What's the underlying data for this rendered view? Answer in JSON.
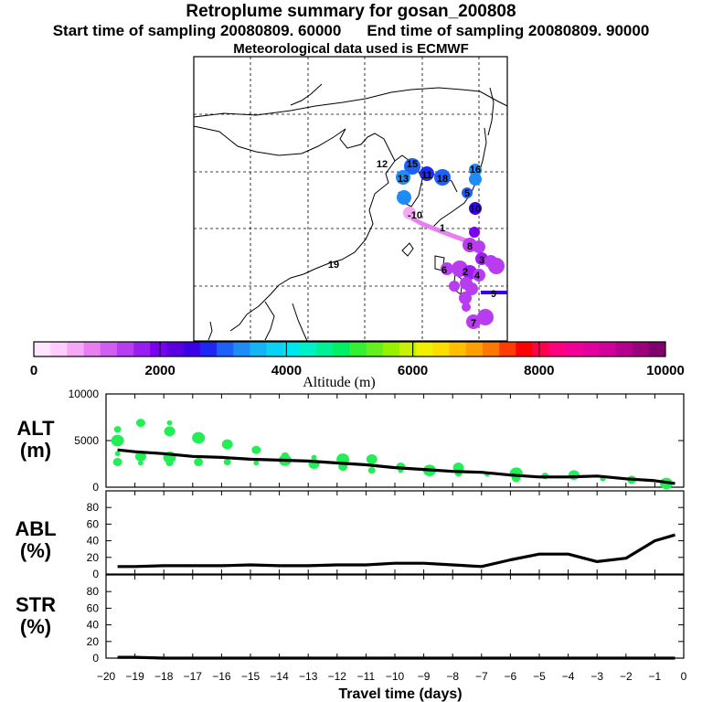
{
  "title": "Retroplume summary for gosan_200808",
  "start_label": "Start time of sampling 20080809. 60000",
  "end_label": "End time of sampling 20080809. 90000",
  "met_label": "Meteorological data used is ECMWF",
  "colorbar": {
    "label": "Altitude (m)",
    "ticks": [
      "0",
      "2000",
      "4000",
      "6000",
      "8000",
      "10000"
    ],
    "colors": [
      "#ffe6ff",
      "#ffccff",
      "#f5a8f5",
      "#e680f0",
      "#d15ef0",
      "#b83cf0",
      "#9a1ef0",
      "#7a00f0",
      "#5a00e0",
      "#3a00e6",
      "#1e28f5",
      "#1e60fa",
      "#1e8cf5",
      "#14b4f5",
      "#0ad2f5",
      "#00e6f0",
      "#00f0c8",
      "#00f096",
      "#00f064",
      "#32f032",
      "#64f01e",
      "#96f000",
      "#c8f000",
      "#f0f000",
      "#ffdc00",
      "#ffbe00",
      "#ffa000",
      "#ff7800",
      "#ff3c00",
      "#ff0000",
      "#ff0050",
      "#ff0080",
      "#f00096",
      "#e1009b",
      "#d2009b",
      "#b4008c",
      "#9b007d",
      "#82006e"
    ]
  },
  "map": {
    "labels": [
      {
        "text": "12",
        "color": "#1e60fa"
      },
      {
        "text": "15",
        "color": "#1e28f5"
      },
      {
        "text": "13",
        "color": "#1e8cf5"
      },
      {
        "text": "18",
        "color": "#1e8cf5"
      },
      {
        "text": "16",
        "color": "#1e60fa"
      },
      {
        "text": "11",
        "color": "#1e28f5"
      },
      {
        "text": "5",
        "color": "#1e60fa"
      },
      {
        "text": "10",
        "color": "#3a00e6"
      },
      {
        "text": "19",
        "color": "#1e60fa"
      },
      {
        "text": "-10",
        "color": "#f5a8f5"
      },
      {
        "text": "1",
        "color": "#d15ef0"
      },
      {
        "text": "8",
        "color": "#b83cf0"
      },
      {
        "text": "3",
        "color": "#b83cf0"
      },
      {
        "text": "4",
        "color": "#9a1ef0"
      },
      {
        "text": "6",
        "color": "#b83cf0"
      },
      {
        "text": "2",
        "color": "#9a1ef0"
      },
      {
        "text": "9",
        "color": "#b83cf0"
      },
      {
        "text": "7",
        "color": "#b83cf0"
      }
    ]
  },
  "chart_data": [
    {
      "type": "scatter",
      "panel": "ALT",
      "ylabel": "ALT\n(m)",
      "xlabel": "Travel time (days)",
      "xlim": [
        -20,
        0
      ],
      "ylim": [
        0,
        10000
      ],
      "yticks": [
        "0",
        "5000",
        "10000"
      ],
      "xticks": [
        "−20",
        "−19",
        "−18",
        "−17",
        "−16",
        "−15",
        "−14",
        "−13",
        "−12",
        "−11",
        "−10",
        "−9",
        "−8",
        "−7",
        "−6",
        "−5",
        "−4",
        "−3",
        "−2",
        "−1",
        "0"
      ],
      "mean_line": {
        "x": [
          -19.6,
          -19,
          -18,
          -17,
          -16,
          -15,
          -14,
          -13,
          -12,
          -11,
          -10,
          -9,
          -8,
          -7,
          -6,
          -5,
          -4,
          -3,
          -2,
          -1,
          -0.3
        ],
        "y": [
          4000,
          3800,
          3600,
          3300,
          3200,
          3000,
          2900,
          2800,
          2600,
          2400,
          2100,
          1900,
          1700,
          1600,
          1300,
          1100,
          1100,
          1200,
          900,
          700,
          400
        ]
      },
      "clusters": [
        {
          "x": -19.6,
          "y": 3600
        },
        {
          "x": -19.6,
          "y": 2700
        },
        {
          "x": -19.6,
          "y": 5000
        },
        {
          "x": -19.6,
          "y": 6200
        },
        {
          "x": -18.8,
          "y": 3300
        },
        {
          "x": -18.8,
          "y": 2600
        },
        {
          "x": -18.8,
          "y": 6900
        },
        {
          "x": -17.8,
          "y": 3200
        },
        {
          "x": -17.8,
          "y": 2600
        },
        {
          "x": -17.8,
          "y": 6000
        },
        {
          "x": -17.8,
          "y": 6900
        },
        {
          "x": -16.8,
          "y": 2700
        },
        {
          "x": -16.8,
          "y": 5300
        },
        {
          "x": -15.8,
          "y": 2700
        },
        {
          "x": -15.8,
          "y": 4600
        },
        {
          "x": -14.8,
          "y": 2600
        },
        {
          "x": -14.8,
          "y": 4000
        },
        {
          "x": -13.8,
          "y": 2900
        },
        {
          "x": -13.8,
          "y": 3400
        },
        {
          "x": -12.8,
          "y": 2500
        },
        {
          "x": -12.8,
          "y": 3200
        },
        {
          "x": -11.8,
          "y": 2200
        },
        {
          "x": -11.8,
          "y": 3000
        },
        {
          "x": -10.8,
          "y": 1800
        },
        {
          "x": -10.8,
          "y": 3000
        },
        {
          "x": -9.8,
          "y": 1800
        },
        {
          "x": -9.8,
          "y": 2200
        },
        {
          "x": -8.8,
          "y": 1800
        },
        {
          "x": -7.8,
          "y": 1500
        },
        {
          "x": -7.8,
          "y": 2100
        },
        {
          "x": -6.8,
          "y": 1400
        },
        {
          "x": -5.8,
          "y": 1000
        },
        {
          "x": -5.8,
          "y": 1500
        },
        {
          "x": -4.8,
          "y": 1200
        },
        {
          "x": -3.8,
          "y": 1300
        },
        {
          "x": -2.8,
          "y": 900
        },
        {
          "x": -1.8,
          "y": 800
        },
        {
          "x": -0.6,
          "y": 400
        }
      ],
      "point_color": "#22ee55"
    },
    {
      "type": "line",
      "panel": "ABL",
      "ylabel": "ABL\n(%)",
      "xlim": [
        -20,
        0
      ],
      "ylim": [
        0,
        100
      ],
      "yticks": [
        "0",
        "20",
        "40",
        "60",
        "80"
      ],
      "x": [
        -19.6,
        -19,
        -18,
        -17,
        -16,
        -15,
        -14,
        -13,
        -12,
        -11,
        -10,
        -9,
        -8,
        -7,
        -6,
        -5,
        -4,
        -3,
        -2,
        -1,
        -0.3
      ],
      "y": [
        9,
        9,
        10,
        10,
        10,
        11,
        10,
        10,
        11,
        11,
        13,
        13,
        11,
        9,
        17,
        24,
        24,
        15,
        19,
        40,
        47
      ]
    },
    {
      "type": "line",
      "panel": "STR",
      "ylabel": "STR\n(%)",
      "xlim": [
        -20,
        0
      ],
      "ylim": [
        0,
        100
      ],
      "yticks": [
        "0",
        "20",
        "40",
        "60",
        "80"
      ],
      "x": [
        -19.6,
        -19,
        -18,
        -17,
        -16,
        -15,
        -14,
        -13,
        -12,
        -11,
        -10,
        -9,
        -8,
        -7,
        -6,
        -5,
        -4,
        -3,
        -2,
        -1,
        -0.3
      ],
      "y": [
        1,
        1,
        0,
        0,
        0,
        0,
        0,
        0,
        0,
        0,
        0,
        0,
        0,
        0,
        0,
        0,
        0,
        0,
        0,
        0,
        0
      ]
    }
  ]
}
